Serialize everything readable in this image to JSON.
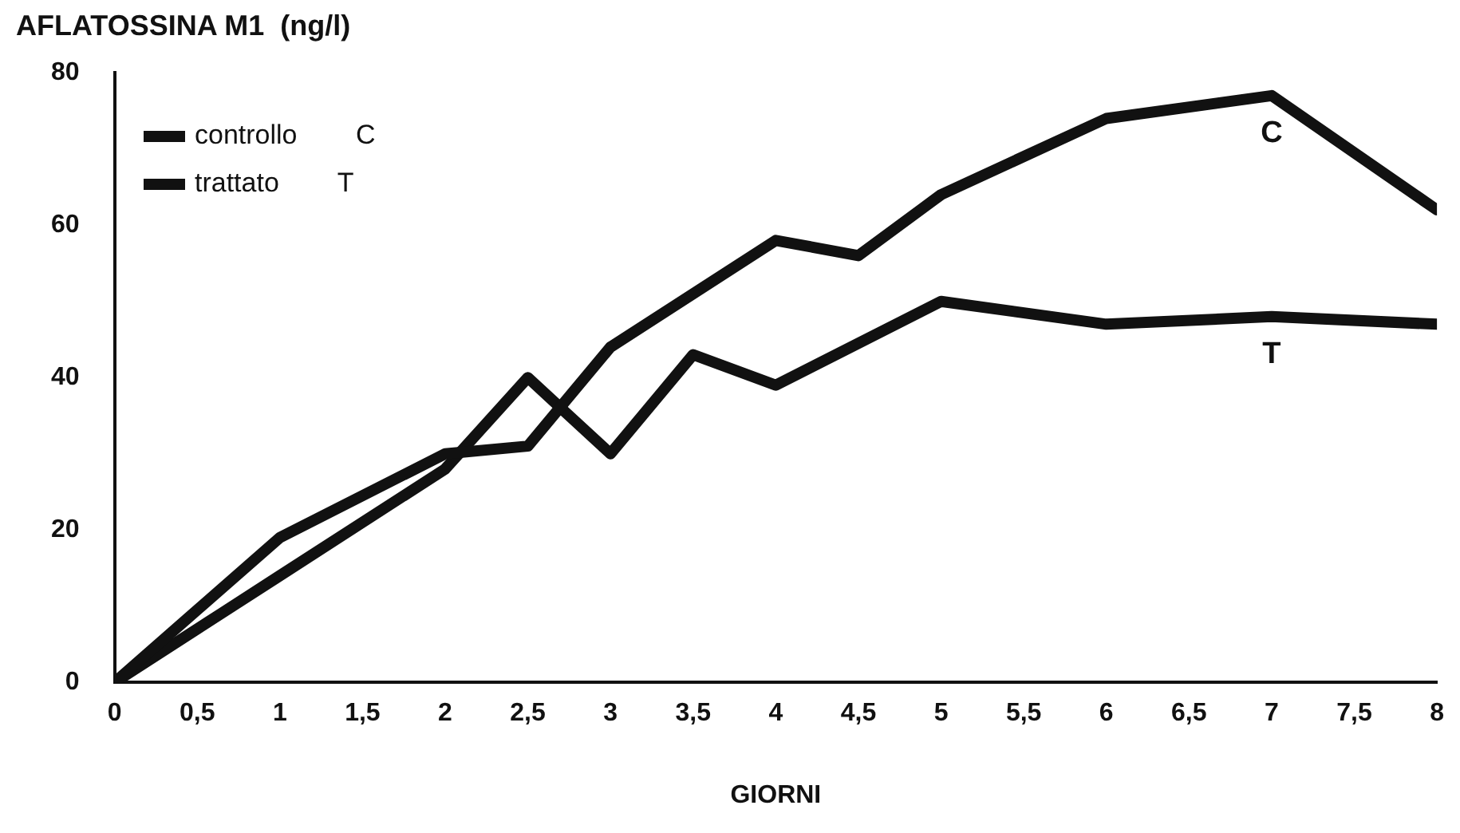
{
  "chart_data": {
    "type": "line",
    "title": "AFLATOSSINA M1  (ng/l)",
    "xlabel": "GIORNI",
    "series": [
      {
        "name": "controllo C",
        "color": "#111111",
        "x": [
          0,
          1,
          2,
          2.5,
          3,
          4,
          4.5,
          5,
          6,
          7,
          8
        ],
        "values": [
          0,
          19,
          30,
          31,
          44,
          58,
          56,
          64,
          74,
          77,
          62
        ]
      },
      {
        "name": "trattato T",
        "color": "#111111",
        "x": [
          0,
          1,
          2,
          2.5,
          3,
          3.5,
          4,
          5,
          6,
          7,
          8
        ],
        "values": [
          0,
          14,
          28,
          40,
          30,
          43,
          39,
          50,
          47,
          48,
          47
        ]
      }
    ],
    "xlim": [
      0,
      8
    ],
    "xticks": [
      0,
      {
        "value": 0.5,
        "label": "0,5"
      },
      1,
      {
        "value": 1.5,
        "label": "1,5"
      },
      2,
      {
        "value": 2.5,
        "label": "2,5"
      },
      3,
      {
        "value": 3.5,
        "label": "3,5"
      },
      4,
      {
        "value": 4.5,
        "label": "4,5"
      },
      5,
      {
        "value": 5.5,
        "label": "5,5"
      },
      6,
      {
        "value": 6.5,
        "label": "6,5"
      },
      7,
      {
        "value": 7.5,
        "label": "7,5"
      },
      8
    ],
    "ylim": [
      0,
      80
    ],
    "yticks": [
      0,
      20,
      40,
      60,
      80
    ],
    "annotations": [
      {
        "text": "C",
        "x": 7,
        "y": 77
      },
      {
        "text": "T",
        "x": 7,
        "y": 48
      }
    ],
    "grid": false,
    "legend": "top left",
    "marker": "none",
    "line_style": "solid"
  }
}
